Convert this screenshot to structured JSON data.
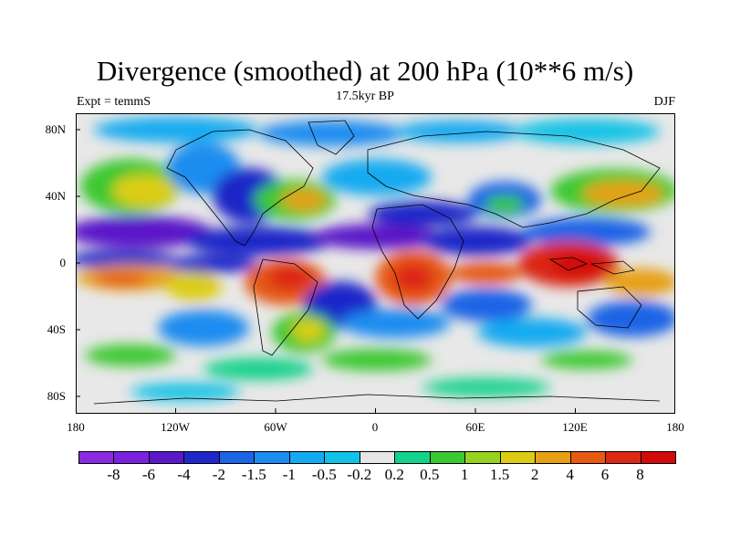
{
  "title": "Divergence (smoothed) at 200 hPa (10**6 m/s)",
  "subtitle_left": "Expt = temmS",
  "subtitle_center": "17.5kyr BP",
  "subtitle_right": "DJF",
  "y_ticks": [
    "80N",
    "40N",
    "0",
    "40S",
    "80S"
  ],
  "x_ticks": [
    "180",
    "120W",
    "60W",
    "0",
    "60E",
    "120E",
    "180"
  ],
  "colorbar": {
    "labels": [
      "-8",
      "-6",
      "-4",
      "-2",
      "-1.5",
      "-1",
      "-0.5",
      "-0.2",
      "0.2",
      "0.5",
      "1",
      "1.5",
      "2",
      "4",
      "6",
      "8"
    ],
    "colors": [
      "#8a2be2",
      "#7a22dc",
      "#5a18c8",
      "#1e28c8",
      "#1e64e6",
      "#1e8cf0",
      "#14aaf0",
      "#12c2e6",
      "#e6e6e6",
      "#14d28c",
      "#3cc832",
      "#96d21e",
      "#dccd14",
      "#e6a014",
      "#e65a14",
      "#dc2814",
      "#d20a0a"
    ]
  }
}
